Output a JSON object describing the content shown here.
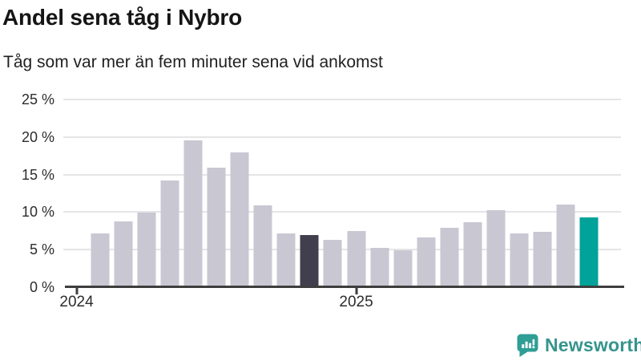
{
  "header": {
    "title": "Andel sena tåg i Nybro",
    "subtitle": "Tåg som var mer än fem minuter sena vid ankomst"
  },
  "chart_data": {
    "type": "bar",
    "title": "Andel sena tåg i Nybro",
    "subtitle": "Tåg som var mer än fem minuter sena vid ankomst",
    "unit": "percent",
    "x": [
      "2024-02",
      "2024-03",
      "2024-04",
      "2024-05",
      "2024-06",
      "2024-07",
      "2024-08",
      "2024-09",
      "2024-10",
      "2024-11",
      "2024-12",
      "2025-01",
      "2025-02",
      "2025-03",
      "2025-04",
      "2025-05",
      "2025-06",
      "2025-07",
      "2025-08",
      "2025-09",
      "2025-10",
      "2025-11"
    ],
    "values": [
      7.2,
      8.8,
      9.9,
      14.2,
      19.6,
      15.9,
      17.9,
      10.9,
      7.2,
      6.9,
      6.3,
      7.5,
      5.2,
      4.9,
      6.6,
      7.9,
      8.7,
      10.3,
      7.2,
      7.4,
      11.0,
      9.3
    ],
    "ylim": [
      0,
      25
    ],
    "yticks": [
      0,
      5,
      10,
      15,
      20,
      25
    ],
    "ytick_labels": [
      "0 %",
      "5 %",
      "10 %",
      "15 %",
      "20 %",
      "25 %"
    ],
    "xticks": [
      {
        "label": "2024",
        "slot": 0
      },
      {
        "label": "2025",
        "slot": 12
      }
    ],
    "axis": {
      "slots_total": 24,
      "start_slot": 1
    },
    "grid": true,
    "legend": "none",
    "colors": {
      "default": "#c9c7d2",
      "highlight_dark": "#413f4e",
      "highlight_teal": "#00a29a"
    },
    "highlight": {
      "dark_index": 9,
      "teal_index": 21
    }
  },
  "footer": {
    "brand": "Newsworthy",
    "brand_color": "#35948d",
    "logo_icon": "newsworthy-speech-bubble-bar-chart-icon"
  }
}
